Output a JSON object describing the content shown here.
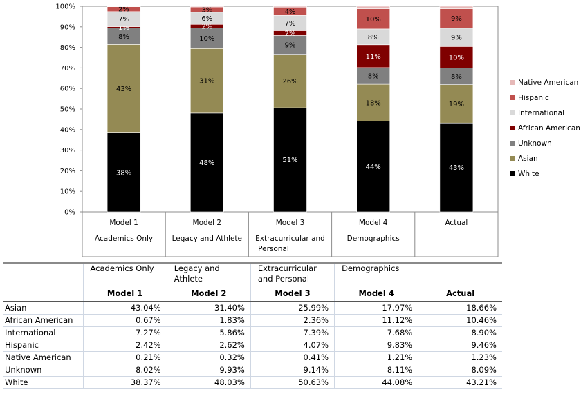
{
  "chart_data": {
    "type": "bar",
    "stacked": true,
    "categories": [
      [
        "Model 1",
        "Academics Only"
      ],
      [
        "Model 2",
        "Legacy and Athlete"
      ],
      [
        "Model 3",
        "Extracurricular and Personal"
      ],
      [
        "Model 4",
        "Demographics"
      ],
      [
        "Actual",
        ""
      ]
    ],
    "y_ticks": [
      "0%",
      "10%",
      "20%",
      "30%",
      "40%",
      "50%",
      "60%",
      "70%",
      "80%",
      "90%",
      "100%"
    ],
    "ylim": [
      0,
      100
    ],
    "legend_position": "right",
    "series": [
      {
        "name": "White",
        "color": "#000000",
        "text_color": "#ffffff",
        "values": [
          38.37,
          48.03,
          50.63,
          44.08,
          43.21
        ],
        "labels": [
          "38%",
          "48%",
          "51%",
          "44%",
          "43%"
        ]
      },
      {
        "name": "Asian",
        "color": "#948a54",
        "text_color": "#000000",
        "values": [
          43.04,
          31.4,
          25.99,
          17.97,
          18.66
        ],
        "labels": [
          "43%",
          "31%",
          "26%",
          "18%",
          "19%"
        ]
      },
      {
        "name": "Unknown",
        "color": "#808080",
        "text_color": "#000000",
        "values": [
          8.02,
          9.93,
          9.14,
          8.11,
          8.09
        ],
        "labels": [
          "8%",
          "10%",
          "9%",
          "8%",
          "8%"
        ]
      },
      {
        "name": "African American",
        "color": "#7f0000",
        "text_color": "#ffffff",
        "values": [
          0.67,
          1.83,
          2.36,
          11.12,
          10.46
        ],
        "labels": [
          "1%",
          "2%",
          "2%",
          "11%",
          "10%"
        ]
      },
      {
        "name": "International",
        "color": "#d9d9d9",
        "text_color": "#000000",
        "values": [
          7.27,
          5.86,
          7.39,
          7.68,
          8.9
        ],
        "labels": [
          "7%",
          "6%",
          "7%",
          "8%",
          "9%"
        ]
      },
      {
        "name": "Hispanic",
        "color": "#c0504d",
        "text_color": "#000000",
        "values": [
          2.42,
          2.62,
          4.07,
          9.83,
          9.46
        ],
        "labels": [
          "2%",
          "3%",
          "4%",
          "10%",
          "9%"
        ]
      },
      {
        "name": "Native American",
        "color": "#e6b9b8",
        "text_color": "#000000",
        "values": [
          0.21,
          0.32,
          0.41,
          1.21,
          1.23
        ],
        "labels": [
          "",
          "",
          "",
          "",
          ""
        ]
      }
    ],
    "legend_order": [
      "Native American",
      "Hispanic",
      "International",
      "African American",
      "Unknown",
      "Asian",
      "White"
    ]
  },
  "table": {
    "descriptions": [
      "Academics Only",
      "Legacy and Athlete",
      "Extracurricular and Personal",
      "Demographics",
      ""
    ],
    "models": [
      "Model 1",
      "Model 2",
      "Model 3",
      "Model 4",
      "Actual"
    ],
    "rows": [
      {
        "label": "Asian",
        "values": [
          "43.04%",
          "31.40%",
          "25.99%",
          "17.97%",
          "18.66%"
        ]
      },
      {
        "label": "African American",
        "values": [
          "0.67%",
          "1.83%",
          "2.36%",
          "11.12%",
          "10.46%"
        ]
      },
      {
        "label": "International",
        "values": [
          "7.27%",
          "5.86%",
          "7.39%",
          "7.68%",
          "8.90%"
        ]
      },
      {
        "label": "Hispanic",
        "values": [
          "2.42%",
          "2.62%",
          "4.07%",
          "9.83%",
          "9.46%"
        ]
      },
      {
        "label": "Native American",
        "values": [
          "0.21%",
          "0.32%",
          "0.41%",
          "1.21%",
          "1.23%"
        ]
      },
      {
        "label": "Unknown",
        "values": [
          "8.02%",
          "9.93%",
          "9.14%",
          "8.11%",
          "8.09%"
        ]
      },
      {
        "label": "White",
        "values": [
          "38.37%",
          "48.03%",
          "50.63%",
          "44.08%",
          "43.21%"
        ]
      }
    ]
  }
}
